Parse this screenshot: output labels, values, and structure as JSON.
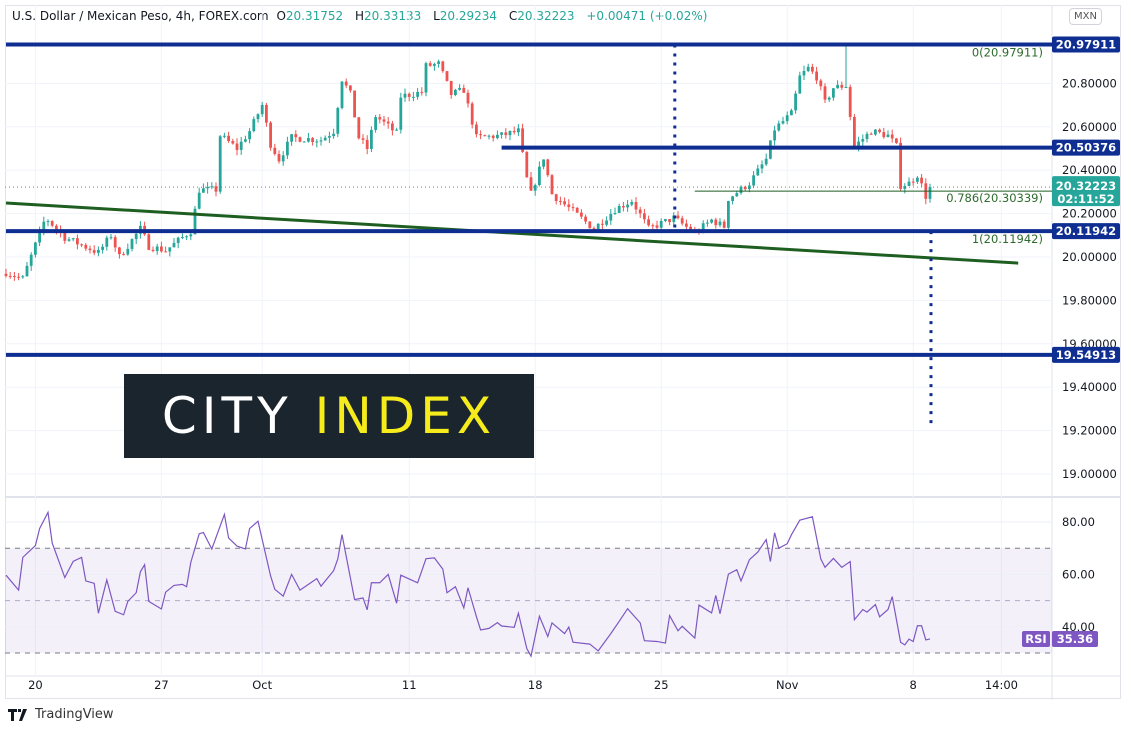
{
  "header": {
    "symbol": "U.S. Dollar / Mexican Peso, 4h, FOREX.com",
    "open_label": "O",
    "open": "20.31752",
    "high_label": "H",
    "high": "20.33133",
    "low_label": "L",
    "low": "20.29234",
    "close_label": "C",
    "close": "20.32223",
    "change": "+0.00471 (+0.02%)"
  },
  "currency_button": "MXN",
  "footer": {
    "brand": "TradingView"
  },
  "watermark": {
    "part1": "CITY",
    "part2": "INDEX"
  },
  "colors": {
    "up": "#26a69a",
    "down": "#ef5350",
    "level": "#0f2e91",
    "trend": "#1e5e20",
    "rsi": "#7e57c2",
    "fib": "#1e5e20"
  },
  "chart_data": {
    "type": "candlestick",
    "title": "U.S. Dollar / Mexican Peso, 4h, FOREX.com",
    "price_ticks": [
      "19.00000",
      "19.20000",
      "19.40000",
      "19.60000",
      "19.80000",
      "20.00000",
      "20.20000",
      "20.40000",
      "20.60000",
      "20.80000"
    ],
    "price_tick_values": [
      19.0,
      19.2,
      19.4,
      19.6,
      19.8,
      20.0,
      20.2,
      20.4,
      20.6,
      20.8
    ],
    "time_ticks": [
      {
        "label": "20",
        "i": 7
      },
      {
        "label": "27",
        "i": 37
      },
      {
        "label": "Oct",
        "i": 61
      },
      {
        "label": "11",
        "i": 96
      },
      {
        "label": "18",
        "i": 126
      },
      {
        "label": "25",
        "i": 156
      },
      {
        "label": "Nov",
        "i": 186
      },
      {
        "label": "8",
        "i": 216
      },
      {
        "label": "14:00",
        "i": 237
      }
    ],
    "close_path": [
      [
        0,
        19.93
      ],
      [
        4,
        19.9
      ],
      [
        9,
        20.16
      ],
      [
        10,
        20.17
      ],
      [
        14,
        20.09
      ],
      [
        22,
        20.02
      ],
      [
        25,
        20.1
      ],
      [
        27,
        20.0
      ],
      [
        32,
        20.13
      ],
      [
        34,
        20.05
      ],
      [
        38,
        20.03
      ],
      [
        44,
        20.12
      ],
      [
        46,
        20.31
      ],
      [
        50,
        20.31
      ],
      [
        51,
        20.56
      ],
      [
        55,
        20.5
      ],
      [
        58,
        20.58
      ],
      [
        61,
        20.7
      ],
      [
        63,
        20.52
      ],
      [
        65,
        20.45
      ],
      [
        68,
        20.55
      ],
      [
        75,
        20.54
      ],
      [
        78,
        20.58
      ],
      [
        80,
        20.82
      ],
      [
        82,
        20.75
      ],
      [
        84,
        20.55
      ],
      [
        86,
        20.5
      ],
      [
        88,
        20.65
      ],
      [
        93,
        20.57
      ],
      [
        94,
        20.74
      ],
      [
        99,
        20.76
      ],
      [
        100,
        20.88
      ],
      [
        103,
        20.89
      ],
      [
        106,
        20.75
      ],
      [
        109,
        20.77
      ],
      [
        112,
        20.55
      ],
      [
        118,
        20.56
      ],
      [
        122,
        20.58
      ],
      [
        124,
        20.36
      ],
      [
        125,
        20.29
      ],
      [
        128,
        20.46
      ],
      [
        130,
        20.29
      ],
      [
        135,
        20.21
      ],
      [
        140,
        20.13
      ],
      [
        145,
        20.22
      ],
      [
        149,
        20.26
      ],
      [
        153,
        20.13
      ],
      [
        159,
        20.18
      ],
      [
        164,
        20.11
      ],
      [
        168,
        20.17
      ],
      [
        171,
        20.14
      ],
      [
        172,
        20.27
      ],
      [
        177,
        20.34
      ],
      [
        181,
        20.45
      ],
      [
        183,
        20.59
      ],
      [
        187,
        20.66
      ],
      [
        189,
        20.83
      ],
      [
        191,
        20.87
      ],
      [
        193,
        20.83
      ],
      [
        195,
        20.71
      ],
      [
        197,
        20.78
      ],
      [
        200,
        20.79
      ],
      [
        202,
        20.51
      ],
      [
        206,
        20.58
      ],
      [
        210,
        20.56
      ],
      [
        212,
        20.51
      ],
      [
        213,
        20.33
      ],
      [
        215,
        20.34
      ],
      [
        217,
        20.38
      ],
      [
        219,
        20.28
      ],
      [
        220,
        20.32223
      ]
    ],
    "spikes": [
      {
        "i": 200,
        "high": 20.979
      }
    ],
    "levels": [
      {
        "price": 20.97911,
        "label": "20.97911",
        "from_i": 0
      },
      {
        "price": 20.50376,
        "label": "20.50376",
        "from_i": 118
      },
      {
        "price": 20.11942,
        "label": "20.11942",
        "from_i": 0
      },
      {
        "price": 19.54913,
        "label": "19.54913",
        "from_i": 0
      }
    ],
    "fib": [
      {
        "label": "0(20.97911)",
        "price": 20.97911
      },
      {
        "label": "0.786(20.30339)",
        "price": 20.30339,
        "from_i": 164
      },
      {
        "label": "1(20.11942)",
        "price": 20.11942
      }
    ],
    "trendline": {
      "from": [
        0,
        20.249
      ],
      "to": [
        241,
        19.972
      ]
    },
    "vlines": [
      {
        "i": 159,
        "from": 20.979,
        "to": 20.119
      },
      {
        "i": 220,
        "from": 20.119,
        "to": 19.225
      }
    ],
    "last_price": {
      "label": "20.32223",
      "countdown": "02:11:52",
      "value": 20.32223
    },
    "rsi": {
      "name": "RSI",
      "last": "35.36",
      "ticks": [
        "40.00",
        "60.00",
        "80.00"
      ],
      "tick_values": [
        40,
        60,
        80
      ],
      "bands": [
        30,
        50,
        70
      ],
      "path": [
        [
          0,
          59.7
        ],
        [
          3,
          54
        ],
        [
          4,
          66.5
        ],
        [
          7,
          71
        ],
        [
          8,
          77.5
        ],
        [
          10,
          83.7
        ],
        [
          11,
          72
        ],
        [
          14,
          58.8
        ],
        [
          16,
          65
        ],
        [
          18,
          66.5
        ],
        [
          19,
          57.5
        ],
        [
          21,
          56.6
        ],
        [
          22,
          45.2
        ],
        [
          24,
          57.9
        ],
        [
          26,
          45.9
        ],
        [
          28,
          44.6
        ],
        [
          29,
          49.7
        ],
        [
          31,
          53
        ],
        [
          32,
          61
        ],
        [
          33,
          63.7
        ],
        [
          34,
          49.7
        ],
        [
          37,
          46.8
        ],
        [
          38,
          53.2
        ],
        [
          40,
          55.8
        ],
        [
          42,
          56.2
        ],
        [
          43,
          55.3
        ],
        [
          44,
          64.6
        ],
        [
          46,
          75.5
        ],
        [
          47,
          76
        ],
        [
          49,
          69.7
        ],
        [
          52,
          82.9
        ],
        [
          53,
          73.9
        ],
        [
          55,
          70.8
        ],
        [
          57,
          69.7
        ],
        [
          58,
          77.5
        ],
        [
          60,
          80.3
        ],
        [
          63,
          59.4
        ],
        [
          64,
          54.3
        ],
        [
          66,
          51.7
        ],
        [
          68,
          60
        ],
        [
          70,
          54
        ],
        [
          74,
          58.4
        ],
        [
          75,
          55.5
        ],
        [
          78,
          61.4
        ],
        [
          79,
          65.9
        ],
        [
          80,
          75.2
        ],
        [
          83,
          50.4
        ],
        [
          85,
          51
        ],
        [
          86,
          46.5
        ],
        [
          87,
          56.8
        ],
        [
          89,
          56.8
        ],
        [
          91,
          60
        ],
        [
          93,
          49
        ],
        [
          94,
          59.7
        ],
        [
          98,
          56.8
        ],
        [
          100,
          66
        ],
        [
          102,
          66.3
        ],
        [
          104,
          62
        ],
        [
          105,
          53
        ],
        [
          107,
          55.3
        ],
        [
          109,
          47.2
        ],
        [
          110,
          54.9
        ],
        [
          112,
          43.9
        ],
        [
          113,
          38.8
        ],
        [
          115,
          39.4
        ],
        [
          117,
          41.6
        ],
        [
          118,
          40.3
        ],
        [
          121,
          39.8
        ],
        [
          122,
          45.2
        ],
        [
          124,
          31.7
        ],
        [
          125,
          28.8
        ],
        [
          127,
          44
        ],
        [
          129,
          36.3
        ],
        [
          130,
          41.5
        ],
        [
          133,
          37.4
        ],
        [
          134,
          39.9
        ],
        [
          135,
          34.1
        ],
        [
          139,
          33.4
        ],
        [
          141,
          30.8
        ],
        [
          144,
          37.4
        ],
        [
          146,
          42.1
        ],
        [
          148,
          46.9
        ],
        [
          151,
          41.5
        ],
        [
          152,
          34.7
        ],
        [
          155,
          34.4
        ],
        [
          157,
          33.8
        ],
        [
          158,
          44.3
        ],
        [
          160,
          38.5
        ],
        [
          161,
          40.2
        ],
        [
          164,
          35.7
        ],
        [
          165,
          48.3
        ],
        [
          168,
          45.3
        ],
        [
          169,
          52
        ],
        [
          170,
          45
        ],
        [
          172,
          60.1
        ],
        [
          174,
          61.8
        ],
        [
          175,
          57.5
        ],
        [
          177,
          65.6
        ],
        [
          179,
          68.5
        ],
        [
          181,
          73.3
        ],
        [
          182,
          64.9
        ],
        [
          183,
          75.9
        ],
        [
          184,
          70
        ],
        [
          186,
          71.7
        ],
        [
          187,
          75.1
        ],
        [
          189,
          80.7
        ],
        [
          192,
          82
        ],
        [
          194,
          65.9
        ],
        [
          195,
          62.7
        ],
        [
          197,
          66.1
        ],
        [
          199,
          62.7
        ],
        [
          201,
          64.9
        ],
        [
          202,
          42.7
        ],
        [
          204,
          46.6
        ],
        [
          205,
          45.6
        ],
        [
          207,
          48.5
        ],
        [
          208,
          43.8
        ],
        [
          210,
          46.6
        ],
        [
          211,
          51.5
        ],
        [
          213,
          34.1
        ],
        [
          214,
          33.1
        ],
        [
          215,
          35.3
        ],
        [
          216,
          34.4
        ],
        [
          217,
          40.4
        ],
        [
          218,
          40.4
        ],
        [
          219,
          35
        ],
        [
          220,
          35.36
        ]
      ]
    }
  }
}
